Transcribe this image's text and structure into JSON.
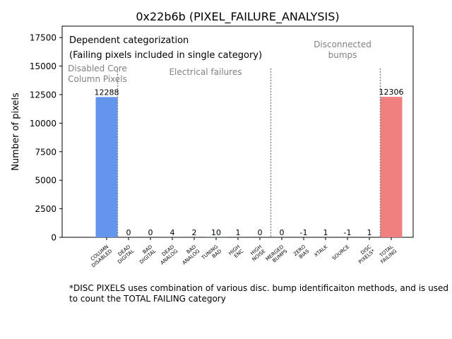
{
  "chart_data": {
    "type": "bar",
    "title": "0x22b6b (PIXEL_FAILURE_ANALYSIS)",
    "ylabel": "Number of pixels",
    "xlabel": "",
    "ylim": [
      0,
      18500
    ],
    "yticks": [
      0,
      2500,
      5000,
      7500,
      10000,
      12500,
      15000,
      17500
    ],
    "categories": [
      {
        "line1": "COLUMN",
        "line2": "DISABLED"
      },
      {
        "line1": "DEAD",
        "line2": "DIGITAL"
      },
      {
        "line1": "BAD",
        "line2": "DIGITAL"
      },
      {
        "line1": "DEAD",
        "line2": "ANALOG"
      },
      {
        "line1": "BAD",
        "line2": "ANALOG"
      },
      {
        "line1": "TUNING",
        "line2": "BAD"
      },
      {
        "line1": "HIGH",
        "line2": "ENC"
      },
      {
        "line1": "HIGH",
        "line2": "NOISE"
      },
      {
        "line1": "MERGED",
        "line2": "BUMPS"
      },
      {
        "line1": "ZERO",
        "line2": "BIAS"
      },
      {
        "line1": "XTALK",
        "line2": ""
      },
      {
        "line1": "SOURCE",
        "line2": ""
      },
      {
        "line1": "DISC",
        "line2": "PIXELS*"
      },
      {
        "line1": "TOTAL",
        "line2": "FAILING"
      }
    ],
    "values": [
      12288,
      0,
      0,
      4,
      2,
      10,
      1,
      0,
      0,
      -1,
      1,
      -1,
      1,
      12306
    ],
    "value_labels": [
      "12288",
      "0",
      "0",
      "4",
      "2",
      "10",
      "1",
      "0",
      "0",
      "-1",
      "1",
      "-1",
      "1",
      "12306"
    ],
    "colors": {
      "COLUMN DISABLED": "#6495ED",
      "TOTAL FAILING": "#F08080",
      "other": "#6495ED",
      "separator": "#808080",
      "group_label": "#808080"
    },
    "separators_after_index": [
      0,
      7,
      12
    ],
    "legend_box": {
      "line1": "Dependent categorization",
      "line2": "(Failing pixels included in single category)"
    },
    "group_labels": [
      {
        "line1": "Disabled Core",
        "line2": "Column Pixels"
      },
      {
        "line1": "Electrical failures",
        "line2": ""
      },
      {
        "line1": "Disconnected",
        "line2": "bumps"
      }
    ],
    "footnote": "*DISC PIXELS uses combination of various disc. bump identificaiton methods, and is used to count the TOTAL FAILING category"
  }
}
